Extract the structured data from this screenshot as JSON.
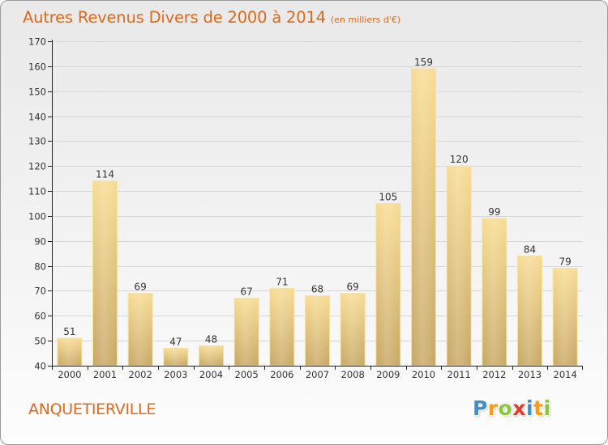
{
  "title": "Autres Revenus Divers de 2000 à 2014",
  "subtitle": "(en milliers d'€)",
  "location": "ANQUETIERVILLE",
  "brand": {
    "text": "Proxiti",
    "letters": [
      {
        "char": "P",
        "color": "#3e8fd0"
      },
      {
        "char": "r",
        "color": "#f39c1d"
      },
      {
        "char": "o",
        "color": "#8cc63f"
      },
      {
        "char": "x",
        "color": "#e53b2c"
      },
      {
        "char": "i",
        "color": "#3e8fd0"
      },
      {
        "char": "t",
        "color": "#f39c1d"
      },
      {
        "char": "i",
        "color": "#8cc63f"
      }
    ]
  },
  "colors": {
    "accent": "#dd6a1c",
    "bar_top": "#f8dc94",
    "bar_bottom": "#c8a865",
    "axis": "#222222",
    "grid": "#d6d6d6"
  },
  "chart_data": {
    "type": "bar",
    "categories": [
      "2000",
      "2001",
      "2002",
      "2003",
      "2004",
      "2005",
      "2006",
      "2007",
      "2008",
      "2009",
      "2010",
      "2011",
      "2012",
      "2013",
      "2014"
    ],
    "values": [
      51,
      114,
      69,
      47,
      48,
      67,
      71,
      68,
      69,
      105,
      159,
      120,
      99,
      84,
      79
    ],
    "ylim": [
      40,
      170
    ],
    "yticks": [
      40,
      50,
      60,
      70,
      80,
      90,
      100,
      110,
      120,
      130,
      140,
      150,
      160,
      170
    ],
    "grid": true,
    "data_labels": true
  }
}
